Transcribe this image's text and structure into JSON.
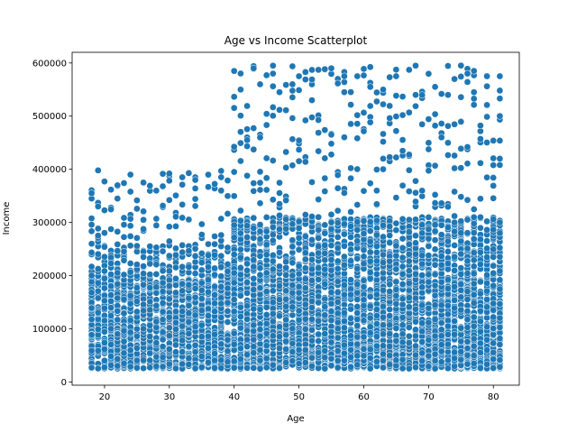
{
  "chart_data": {
    "type": "scatter",
    "title": "Age vs Income Scatterplot",
    "xlabel": "Age",
    "ylabel": "Income",
    "xlim": [
      15,
      84
    ],
    "ylim": [
      -6000,
      620000
    ],
    "xticks": [
      20,
      30,
      40,
      50,
      60,
      70,
      80
    ],
    "yticks": [
      0,
      100000,
      200000,
      300000,
      400000,
      500000,
      600000
    ],
    "xtick_labels": [
      "20",
      "30",
      "40",
      "50",
      "60",
      "70",
      "80"
    ],
    "ytick_labels": [
      "0",
      "100000",
      "200000",
      "300000",
      "400000",
      "500000",
      "600000"
    ],
    "grid": false,
    "legend": "none",
    "marker_color": "#1f77b4",
    "marker_edge_color": "#ffffff",
    "age_range": [
      18,
      81
    ],
    "density": {
      "dense_band": [
        25000,
        200000
      ],
      "mid_band_age_40_plus": [
        200000,
        310000
      ],
      "high_band_under_40": [
        200000,
        400000
      ],
      "high_band_age_40_plus": [
        310000,
        595000
      ]
    },
    "series": [
      {
        "values_sample": [
          [
            18,
            260000
          ],
          [
            18,
            345000
          ],
          [
            18,
            355000
          ],
          [
            19,
            398000
          ],
          [
            19,
            330000
          ],
          [
            22,
            370000
          ],
          [
            24,
            390000
          ],
          [
            26,
            375000
          ],
          [
            28,
            360000
          ],
          [
            30,
            392000
          ],
          [
            32,
            385000
          ],
          [
            34,
            380000
          ],
          [
            36,
            390000
          ],
          [
            38,
            385000
          ],
          [
            40,
            395000
          ],
          [
            41,
            550000
          ],
          [
            43,
            590000
          ],
          [
            44,
            560000
          ],
          [
            46,
            580000
          ],
          [
            47,
            545000
          ],
          [
            49,
            560000
          ],
          [
            50,
            575000
          ],
          [
            52,
            530000
          ],
          [
            55,
            590000
          ],
          [
            57,
            575000
          ],
          [
            59,
            575000
          ],
          [
            61,
            555000
          ],
          [
            63,
            550000
          ],
          [
            65,
            575000
          ],
          [
            68,
            540000
          ],
          [
            71,
            555000
          ],
          [
            73,
            540000
          ],
          [
            75,
            595000
          ],
          [
            76,
            580000
          ],
          [
            79,
            575000
          ],
          [
            81,
            575000
          ],
          [
            81,
            500000
          ],
          [
            81,
            420000
          ],
          [
            81,
            300000
          ],
          [
            81,
            280000
          ]
        ]
      }
    ]
  }
}
